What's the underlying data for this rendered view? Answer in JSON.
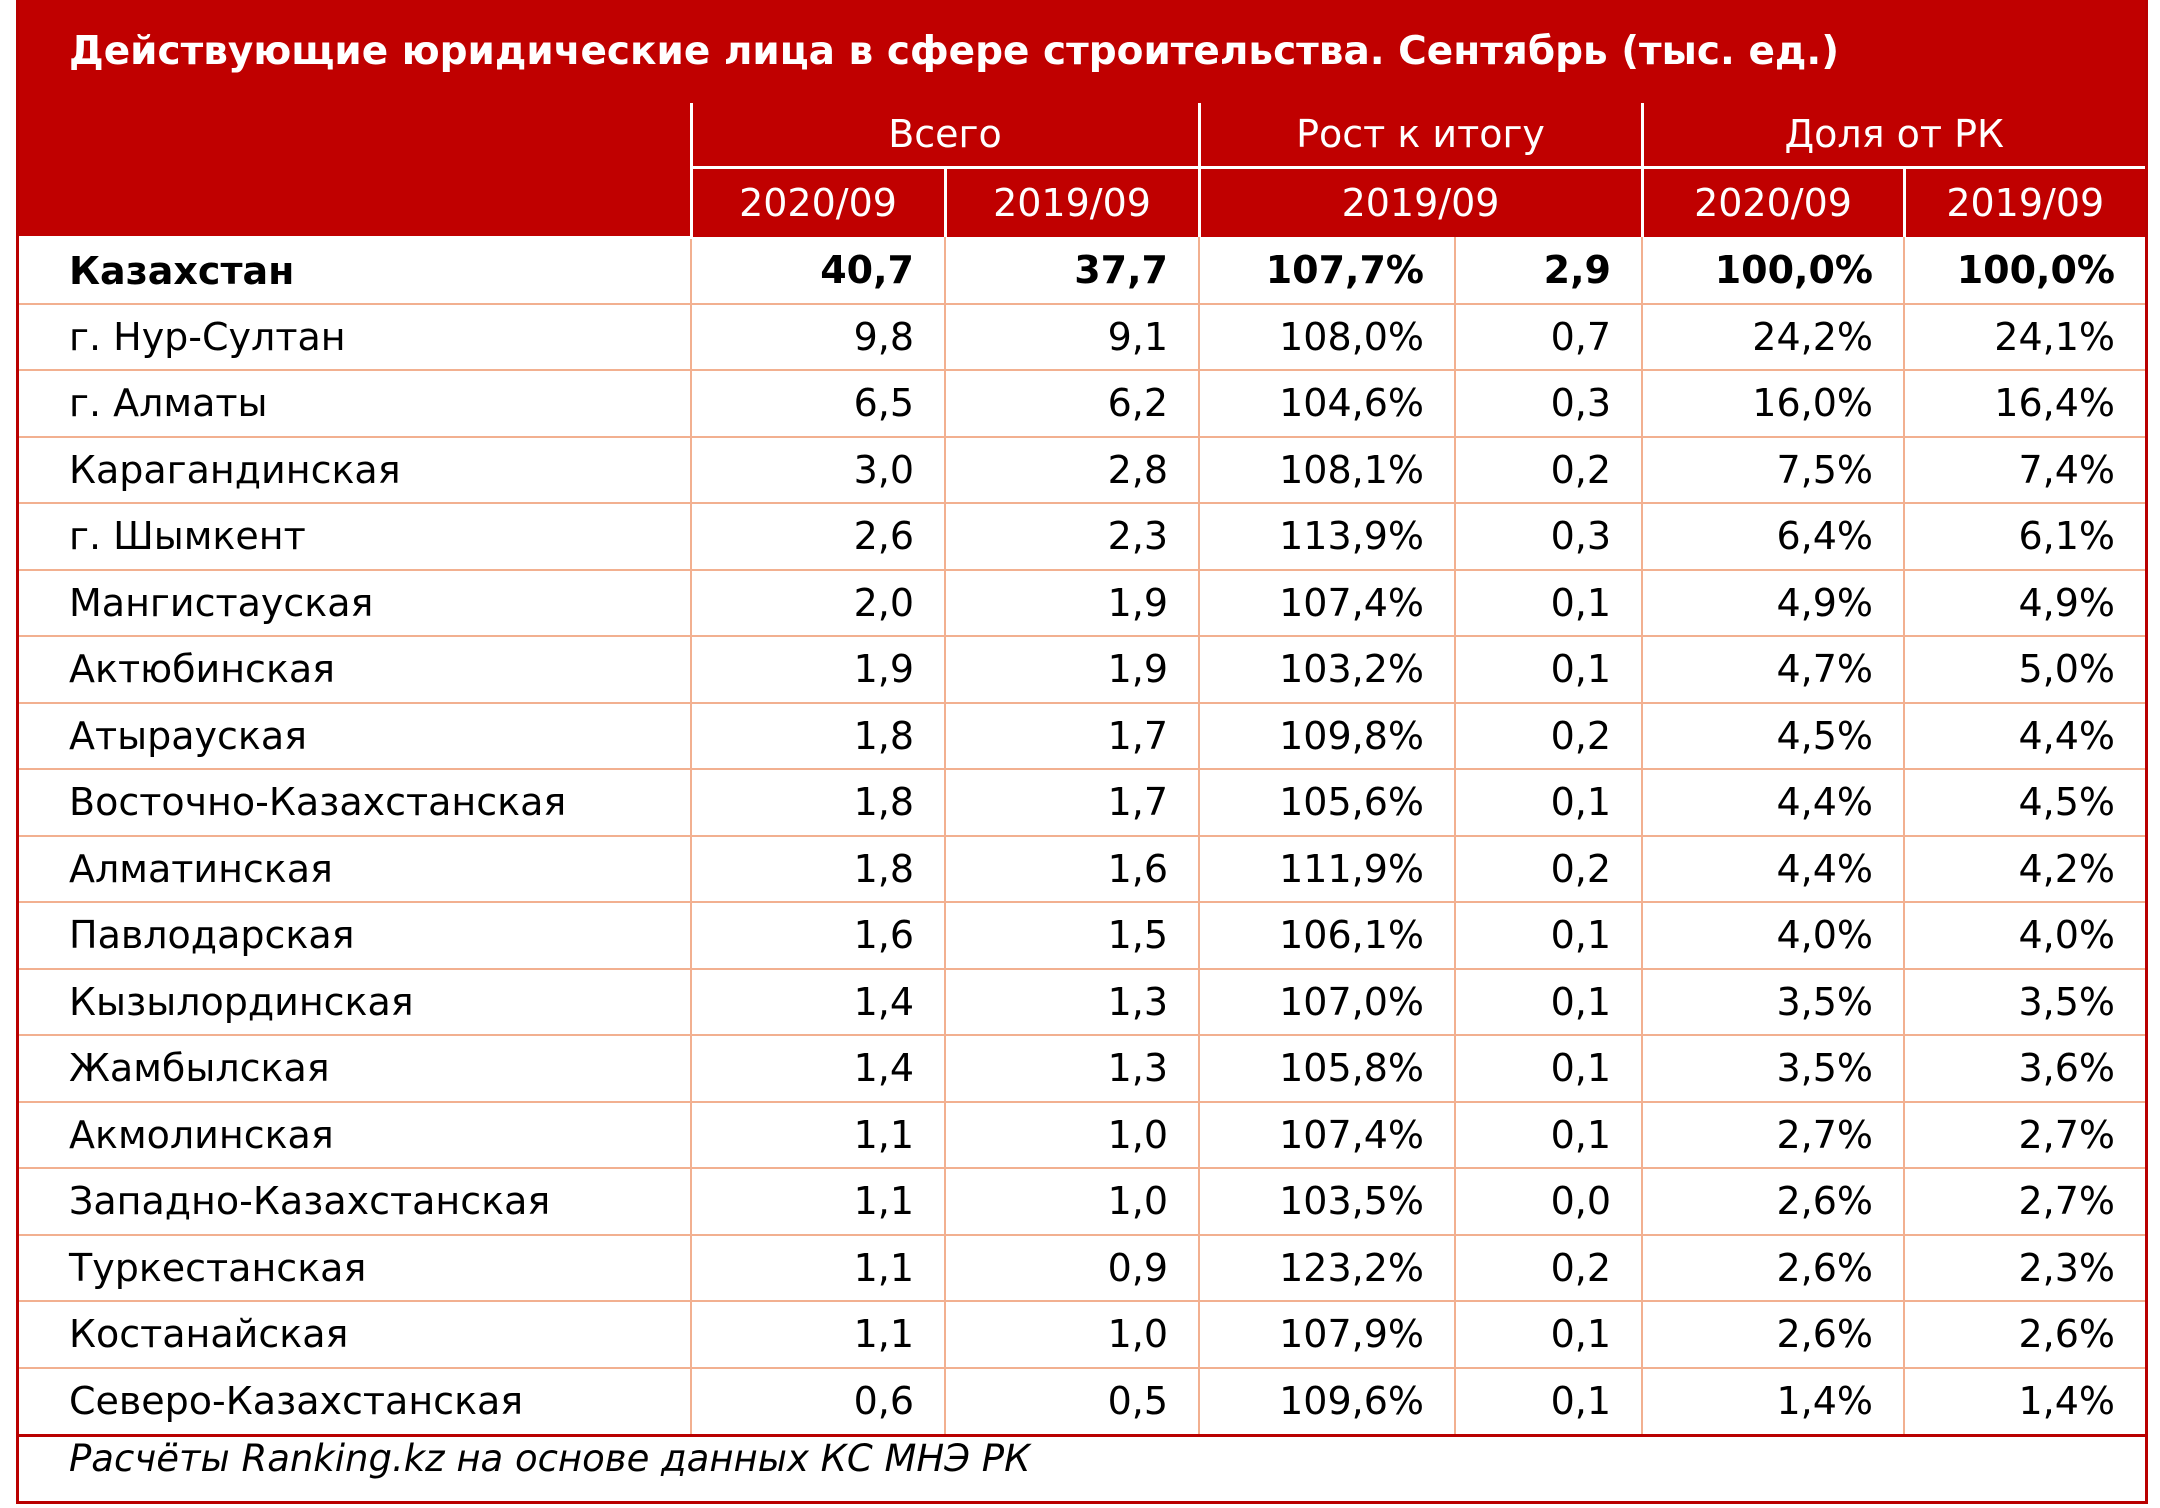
{
  "title": "Действующие юридические лица в сфере строительства. Сентябрь (тыс. ед.)",
  "header": {
    "groups": [
      "Всего",
      "Рост к итогу",
      "Доля от РК"
    ],
    "total_2020": "2020/09",
    "total_2019": "2019/09",
    "growth_period": "2019/09",
    "share_2020": "2020/09",
    "share_2019": "2019/09"
  },
  "rows": [
    {
      "name": "Казахстан",
      "total_2020": "40,7",
      "total_2019": "37,7",
      "growth_pct": "107,7%",
      "growth_abs": "2,9",
      "share_2020": "100,0%",
      "share_2019": "100,0%"
    },
    {
      "name": "г. Нур-Султан",
      "total_2020": "9,8",
      "total_2019": "9,1",
      "growth_pct": "108,0%",
      "growth_abs": "0,7",
      "share_2020": "24,2%",
      "share_2019": "24,1%"
    },
    {
      "name": "г. Алматы",
      "total_2020": "6,5",
      "total_2019": "6,2",
      "growth_pct": "104,6%",
      "growth_abs": "0,3",
      "share_2020": "16,0%",
      "share_2019": "16,4%"
    },
    {
      "name": "Карагандинская",
      "total_2020": "3,0",
      "total_2019": "2,8",
      "growth_pct": "108,1%",
      "growth_abs": "0,2",
      "share_2020": "7,5%",
      "share_2019": "7,4%"
    },
    {
      "name": "г. Шымкент",
      "total_2020": "2,6",
      "total_2019": "2,3",
      "growth_pct": "113,9%",
      "growth_abs": "0,3",
      "share_2020": "6,4%",
      "share_2019": "6,1%"
    },
    {
      "name": "Мангистауская",
      "total_2020": "2,0",
      "total_2019": "1,9",
      "growth_pct": "107,4%",
      "growth_abs": "0,1",
      "share_2020": "4,9%",
      "share_2019": "4,9%"
    },
    {
      "name": "Актюбинская",
      "total_2020": "1,9",
      "total_2019": "1,9",
      "growth_pct": "103,2%",
      "growth_abs": "0,1",
      "share_2020": "4,7%",
      "share_2019": "5,0%"
    },
    {
      "name": "Атырауская",
      "total_2020": "1,8",
      "total_2019": "1,7",
      "growth_pct": "109,8%",
      "growth_abs": "0,2",
      "share_2020": "4,5%",
      "share_2019": "4,4%"
    },
    {
      "name": "Восточно-Казахстанская",
      "total_2020": "1,8",
      "total_2019": "1,7",
      "growth_pct": "105,6%",
      "growth_abs": "0,1",
      "share_2020": "4,4%",
      "share_2019": "4,5%"
    },
    {
      "name": "Алматинская",
      "total_2020": "1,8",
      "total_2019": "1,6",
      "growth_pct": "111,9%",
      "growth_abs": "0,2",
      "share_2020": "4,4%",
      "share_2019": "4,2%"
    },
    {
      "name": "Павлодарская",
      "total_2020": "1,6",
      "total_2019": "1,5",
      "growth_pct": "106,1%",
      "growth_abs": "0,1",
      "share_2020": "4,0%",
      "share_2019": "4,0%"
    },
    {
      "name": "Кызылординская",
      "total_2020": "1,4",
      "total_2019": "1,3",
      "growth_pct": "107,0%",
      "growth_abs": "0,1",
      "share_2020": "3,5%",
      "share_2019": "3,5%"
    },
    {
      "name": "Жамбылская",
      "total_2020": "1,4",
      "total_2019": "1,3",
      "growth_pct": "105,8%",
      "growth_abs": "0,1",
      "share_2020": "3,5%",
      "share_2019": "3,6%"
    },
    {
      "name": "Акмолинская",
      "total_2020": "1,1",
      "total_2019": "1,0",
      "growth_pct": "107,4%",
      "growth_abs": "0,1",
      "share_2020": "2,7%",
      "share_2019": "2,7%"
    },
    {
      "name": "Западно-Казахстанская",
      "total_2020": "1,1",
      "total_2019": "1,0",
      "growth_pct": "103,5%",
      "growth_abs": "0,0",
      "share_2020": "2,6%",
      "share_2019": "2,7%"
    },
    {
      "name": "Туркестанская",
      "total_2020": "1,1",
      "total_2019": "0,9",
      "growth_pct": "123,2%",
      "growth_abs": "0,2",
      "share_2020": "2,6%",
      "share_2019": "2,3%"
    },
    {
      "name": "Костанайская",
      "total_2020": "1,1",
      "total_2019": "1,0",
      "growth_pct": "107,9%",
      "growth_abs": "0,1",
      "share_2020": "2,6%",
      "share_2019": "2,6%"
    },
    {
      "name": "Северо-Казахстанская",
      "total_2020": "0,6",
      "total_2019": "0,5",
      "growth_pct": "109,6%",
      "growth_abs": "0,1",
      "share_2020": "1,4%",
      "share_2019": "1,4%"
    }
  ],
  "footer": "Расчёты Ranking.kz на основе данных КС МНЭ РК"
}
